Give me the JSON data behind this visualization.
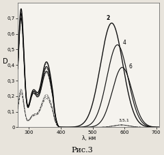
{
  "title": "Рис.3",
  "xlabel": "λ, нм",
  "ylabel": "D",
  "xlim": [
    265,
    710
  ],
  "ylim": [
    0.0,
    0.8
  ],
  "yticks": [
    0.0,
    0.1,
    0.2,
    0.3,
    0.4,
    0.5,
    0.6,
    0.7
  ],
  "xticks": [
    300,
    400,
    500,
    600,
    700
  ],
  "background_color": "#e8e4dc",
  "plot_bg": "#f5f3ee"
}
